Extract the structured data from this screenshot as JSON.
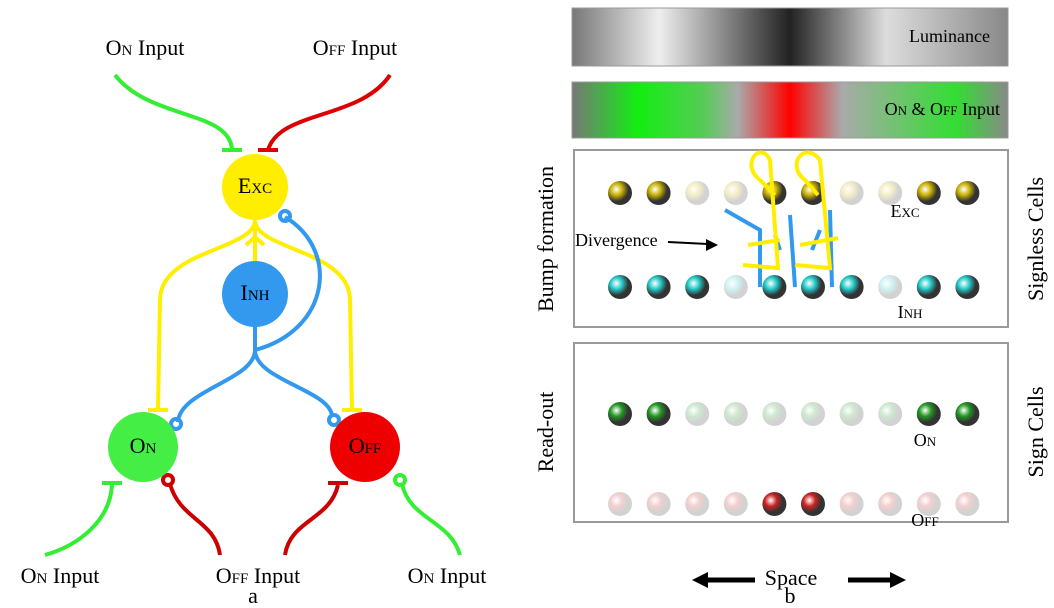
{
  "panel_a": {
    "top_inputs": [
      {
        "cell": "On",
        "word": "Input"
      },
      {
        "cell": "Off",
        "word": "Input"
      }
    ],
    "nodes": [
      "Exc",
      "Inh",
      "On",
      "Off"
    ],
    "bottom_inputs": [
      {
        "cell": "On",
        "word": "Input"
      },
      {
        "cell": "Off",
        "word": "Input"
      },
      {
        "cell": "On",
        "word": "Input"
      }
    ],
    "caption": "a"
  },
  "panel_b": {
    "luminance": "Luminance",
    "input_bar": {
      "first": "On",
      "amp": "&",
      "second": "Off",
      "word": "Input"
    },
    "box1": {
      "side_left": "Bump formation",
      "side_right": "Signless Cells",
      "divergence": "Divergence",
      "exc": "Exc",
      "inh": "Inh"
    },
    "box2": {
      "side_left": "Read-out",
      "side_right": "Sign Cells",
      "on": "On",
      "off": "Off"
    },
    "space": "Space",
    "caption": "b"
  }
}
